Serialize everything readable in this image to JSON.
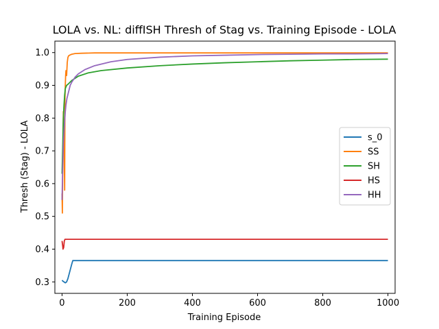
{
  "chart_data": {
    "type": "line",
    "title": "LOLA vs. NL: diffISH Thresh of Stag vs. Training Episode - LOLA",
    "xlabel": "Training Episode",
    "ylabel": "Thresh (Stag) - LOLA",
    "xlim": [
      -22,
      1022
    ],
    "ylim": [
      0.265,
      1.035
    ],
    "xticks": [
      0,
      200,
      400,
      600,
      800,
      1000
    ],
    "yticks": [
      0.3,
      0.4,
      0.5,
      0.6,
      0.7,
      0.8,
      0.9,
      1.0
    ],
    "xtick_labels": [
      "0",
      "200",
      "400",
      "600",
      "800",
      "1000"
    ],
    "ytick_labels": [
      "0.3",
      "0.4",
      "0.5",
      "0.6",
      "0.7",
      "0.8",
      "0.9",
      "1.0"
    ],
    "grid": false,
    "legend_position": "center-right",
    "series": [
      {
        "name": "s_0",
        "color": "#1f77b4",
        "points": [
          [
            0,
            0.305
          ],
          [
            3,
            0.302
          ],
          [
            6,
            0.3
          ],
          [
            10,
            0.297
          ],
          [
            14,
            0.3
          ],
          [
            18,
            0.31
          ],
          [
            22,
            0.325
          ],
          [
            26,
            0.34
          ],
          [
            30,
            0.355
          ],
          [
            33,
            0.365
          ],
          [
            40,
            0.365
          ],
          [
            100,
            0.365
          ],
          [
            300,
            0.365
          ],
          [
            600,
            0.365
          ],
          [
            1000,
            0.365
          ]
        ]
      },
      {
        "name": "SS",
        "color": "#ff7f0e",
        "points": [
          [
            0,
            0.57
          ],
          [
            1,
            0.51
          ],
          [
            2,
            0.66
          ],
          [
            3,
            0.72
          ],
          [
            4,
            0.82
          ],
          [
            5,
            0.79
          ],
          [
            6,
            0.74
          ],
          [
            7,
            0.65
          ],
          [
            8,
            0.58
          ],
          [
            9,
            0.86
          ],
          [
            10,
            0.9
          ],
          [
            11,
            0.93
          ],
          [
            12,
            0.945
          ],
          [
            14,
            0.93
          ],
          [
            16,
            0.97
          ],
          [
            18,
            0.985
          ],
          [
            20,
            0.99
          ],
          [
            25,
            0.993
          ],
          [
            30,
            0.995
          ],
          [
            40,
            0.997
          ],
          [
            60,
            0.998
          ],
          [
            100,
            0.999
          ],
          [
            200,
            0.999
          ],
          [
            500,
            0.999
          ],
          [
            1000,
            0.999
          ]
        ]
      },
      {
        "name": "SH",
        "color": "#2ca02c",
        "points": [
          [
            0,
            0.63
          ],
          [
            2,
            0.71
          ],
          [
            4,
            0.8
          ],
          [
            6,
            0.84
          ],
          [
            8,
            0.87
          ],
          [
            10,
            0.89
          ],
          [
            14,
            0.9
          ],
          [
            20,
            0.905
          ],
          [
            30,
            0.915
          ],
          [
            50,
            0.928
          ],
          [
            80,
            0.938
          ],
          [
            120,
            0.945
          ],
          [
            200,
            0.953
          ],
          [
            300,
            0.96
          ],
          [
            400,
            0.965
          ],
          [
            500,
            0.969
          ],
          [
            600,
            0.972
          ],
          [
            700,
            0.975
          ],
          [
            800,
            0.977
          ],
          [
            900,
            0.979
          ],
          [
            1000,
            0.98
          ]
        ]
      },
      {
        "name": "HS",
        "color": "#d62728",
        "points": [
          [
            0,
            0.425
          ],
          [
            2,
            0.41
          ],
          [
            3,
            0.4
          ],
          [
            5,
            0.405
          ],
          [
            7,
            0.425
          ],
          [
            9,
            0.43
          ],
          [
            12,
            0.43
          ],
          [
            20,
            0.43
          ],
          [
            100,
            0.43
          ],
          [
            500,
            0.43
          ],
          [
            1000,
            0.43
          ]
        ]
      },
      {
        "name": "HH",
        "color": "#9467bd",
        "points": [
          [
            0,
            0.55
          ],
          [
            2,
            0.65
          ],
          [
            4,
            0.72
          ],
          [
            6,
            0.76
          ],
          [
            8,
            0.79
          ],
          [
            10,
            0.82
          ],
          [
            12,
            0.84
          ],
          [
            15,
            0.86
          ],
          [
            20,
            0.88
          ],
          [
            25,
            0.9
          ],
          [
            30,
            0.91
          ],
          [
            40,
            0.925
          ],
          [
            50,
            0.935
          ],
          [
            70,
            0.948
          ],
          [
            100,
            0.96
          ],
          [
            150,
            0.972
          ],
          [
            200,
            0.979
          ],
          [
            300,
            0.986
          ],
          [
            400,
            0.99
          ],
          [
            500,
            0.992
          ],
          [
            600,
            0.994
          ],
          [
            700,
            0.995
          ],
          [
            800,
            0.996
          ],
          [
            900,
            0.996
          ],
          [
            1000,
            0.997
          ]
        ]
      }
    ]
  }
}
